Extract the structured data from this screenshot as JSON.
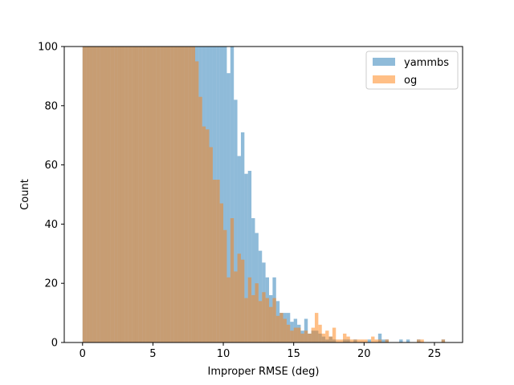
{
  "chart_data": {
    "type": "bar",
    "title": "",
    "xlabel": "Improper RMSE (deg)",
    "ylabel": "Count",
    "xlim": [
      -1.3,
      27.0
    ],
    "ylim": [
      0,
      100
    ],
    "xticks": [
      0,
      5,
      10,
      15,
      20,
      25
    ],
    "yticks": [
      0,
      20,
      40,
      60,
      80,
      100
    ],
    "grid": false,
    "legend_position": "top-right",
    "bin_width": 0.25,
    "series": [
      {
        "name": "yammbs",
        "color": "#1f77b4",
        "alpha": 0.5,
        "bins": [
          [
            0.0,
            100
          ],
          [
            0.25,
            100
          ],
          [
            0.5,
            100
          ],
          [
            0.75,
            100
          ],
          [
            1.0,
            100
          ],
          [
            1.25,
            100
          ],
          [
            1.5,
            100
          ],
          [
            1.75,
            100
          ],
          [
            2.0,
            100
          ],
          [
            2.25,
            100
          ],
          [
            2.5,
            100
          ],
          [
            2.75,
            100
          ],
          [
            3.0,
            100
          ],
          [
            3.25,
            100
          ],
          [
            3.5,
            100
          ],
          [
            3.75,
            100
          ],
          [
            4.0,
            100
          ],
          [
            4.25,
            100
          ],
          [
            4.5,
            100
          ],
          [
            4.75,
            100
          ],
          [
            5.0,
            100
          ],
          [
            5.25,
            100
          ],
          [
            5.5,
            100
          ],
          [
            5.75,
            100
          ],
          [
            6.0,
            100
          ],
          [
            6.25,
            100
          ],
          [
            6.5,
            100
          ],
          [
            6.75,
            100
          ],
          [
            7.0,
            100
          ],
          [
            7.25,
            100
          ],
          [
            7.5,
            100
          ],
          [
            7.75,
            100
          ],
          [
            8.0,
            100
          ],
          [
            8.25,
            100
          ],
          [
            8.5,
            100
          ],
          [
            8.75,
            100
          ],
          [
            9.0,
            100
          ],
          [
            9.25,
            100
          ],
          [
            9.5,
            100
          ],
          [
            9.75,
            100
          ],
          [
            10.0,
            100
          ],
          [
            10.25,
            91
          ],
          [
            10.5,
            100
          ],
          [
            10.75,
            82
          ],
          [
            11.0,
            63
          ],
          [
            11.25,
            71
          ],
          [
            11.5,
            57
          ],
          [
            11.75,
            58
          ],
          [
            12.0,
            42
          ],
          [
            12.25,
            37
          ],
          [
            12.5,
            31
          ],
          [
            12.75,
            27
          ],
          [
            13.0,
            22
          ],
          [
            13.25,
            16
          ],
          [
            13.5,
            22
          ],
          [
            13.75,
            14
          ],
          [
            14.0,
            10
          ],
          [
            14.25,
            10
          ],
          [
            14.5,
            10
          ],
          [
            14.75,
            7
          ],
          [
            15.0,
            8
          ],
          [
            15.25,
            6
          ],
          [
            15.5,
            4
          ],
          [
            15.75,
            8
          ],
          [
            16.0,
            3
          ],
          [
            16.25,
            4
          ],
          [
            16.5,
            4
          ],
          [
            16.75,
            3
          ],
          [
            17.0,
            2
          ],
          [
            17.25,
            1
          ],
          [
            17.5,
            2
          ],
          [
            17.75,
            1
          ],
          [
            18.0,
            0
          ],
          [
            18.25,
            0
          ],
          [
            18.5,
            1
          ],
          [
            18.75,
            1
          ],
          [
            19.0,
            0
          ],
          [
            19.25,
            1
          ],
          [
            19.5,
            0
          ],
          [
            19.75,
            0
          ],
          [
            20.0,
            0
          ],
          [
            20.25,
            1
          ],
          [
            20.5,
            0
          ],
          [
            20.75,
            0
          ],
          [
            21.0,
            3
          ],
          [
            21.25,
            1
          ],
          [
            21.5,
            1
          ],
          [
            21.75,
            0
          ],
          [
            22.0,
            0
          ],
          [
            22.25,
            0
          ],
          [
            22.5,
            1
          ],
          [
            22.75,
            0
          ],
          [
            23.0,
            1
          ],
          [
            23.25,
            0
          ],
          [
            23.5,
            0
          ],
          [
            23.75,
            1
          ],
          [
            24.0,
            0
          ],
          [
            24.25,
            0
          ],
          [
            24.5,
            0
          ],
          [
            24.75,
            0
          ],
          [
            25.0,
            0
          ],
          [
            25.25,
            0
          ],
          [
            25.5,
            1
          ]
        ]
      },
      {
        "name": "og",
        "color": "#ff7f0e",
        "alpha": 0.5,
        "bins": [
          [
            0.0,
            100
          ],
          [
            0.25,
            100
          ],
          [
            0.5,
            100
          ],
          [
            0.75,
            100
          ],
          [
            1.0,
            100
          ],
          [
            1.25,
            100
          ],
          [
            1.5,
            100
          ],
          [
            1.75,
            100
          ],
          [
            2.0,
            100
          ],
          [
            2.25,
            100
          ],
          [
            2.5,
            100
          ],
          [
            2.75,
            100
          ],
          [
            3.0,
            100
          ],
          [
            3.25,
            100
          ],
          [
            3.5,
            100
          ],
          [
            3.75,
            100
          ],
          [
            4.0,
            100
          ],
          [
            4.25,
            100
          ],
          [
            4.5,
            100
          ],
          [
            4.75,
            100
          ],
          [
            5.0,
            100
          ],
          [
            5.25,
            100
          ],
          [
            5.5,
            100
          ],
          [
            5.75,
            100
          ],
          [
            6.0,
            100
          ],
          [
            6.25,
            100
          ],
          [
            6.5,
            100
          ],
          [
            6.75,
            100
          ],
          [
            7.0,
            100
          ],
          [
            7.25,
            100
          ],
          [
            7.5,
            100
          ],
          [
            7.75,
            100
          ],
          [
            8.0,
            95
          ],
          [
            8.25,
            83
          ],
          [
            8.5,
            73
          ],
          [
            8.75,
            72
          ],
          [
            9.0,
            66
          ],
          [
            9.25,
            55
          ],
          [
            9.5,
            55
          ],
          [
            9.75,
            47
          ],
          [
            10.0,
            38
          ],
          [
            10.25,
            22
          ],
          [
            10.5,
            42
          ],
          [
            10.75,
            24
          ],
          [
            11.0,
            30
          ],
          [
            11.25,
            28
          ],
          [
            11.5,
            15
          ],
          [
            11.75,
            22
          ],
          [
            12.0,
            16
          ],
          [
            12.25,
            20
          ],
          [
            12.5,
            14
          ],
          [
            12.75,
            17
          ],
          [
            13.0,
            15
          ],
          [
            13.25,
            12
          ],
          [
            13.5,
            15
          ],
          [
            13.75,
            9
          ],
          [
            14.0,
            10
          ],
          [
            14.25,
            8
          ],
          [
            14.5,
            6
          ],
          [
            14.75,
            4
          ],
          [
            15.0,
            5
          ],
          [
            15.25,
            5
          ],
          [
            15.5,
            3
          ],
          [
            15.75,
            4
          ],
          [
            16.0,
            3
          ],
          [
            16.25,
            5
          ],
          [
            16.5,
            10
          ],
          [
            16.75,
            6
          ],
          [
            17.0,
            3
          ],
          [
            17.25,
            4
          ],
          [
            17.5,
            2
          ],
          [
            17.75,
            5
          ],
          [
            18.0,
            1
          ],
          [
            18.25,
            1
          ],
          [
            18.5,
            3
          ],
          [
            18.75,
            2
          ],
          [
            19.0,
            1
          ],
          [
            19.25,
            1
          ],
          [
            19.5,
            1
          ],
          [
            19.75,
            1
          ],
          [
            20.0,
            1
          ],
          [
            20.25,
            0
          ],
          [
            20.5,
            2
          ],
          [
            20.75,
            1
          ],
          [
            21.0,
            1
          ],
          [
            21.25,
            0
          ],
          [
            21.5,
            1
          ],
          [
            21.75,
            0
          ],
          [
            22.0,
            0
          ],
          [
            22.25,
            0
          ],
          [
            22.5,
            0
          ],
          [
            22.75,
            0
          ],
          [
            23.0,
            0
          ],
          [
            23.25,
            0
          ],
          [
            23.5,
            0
          ],
          [
            23.75,
            1
          ],
          [
            24.0,
            1
          ],
          [
            24.25,
            0
          ],
          [
            24.5,
            0
          ],
          [
            24.75,
            0
          ],
          [
            25.0,
            0
          ],
          [
            25.25,
            0
          ],
          [
            25.5,
            1
          ]
        ]
      }
    ]
  }
}
